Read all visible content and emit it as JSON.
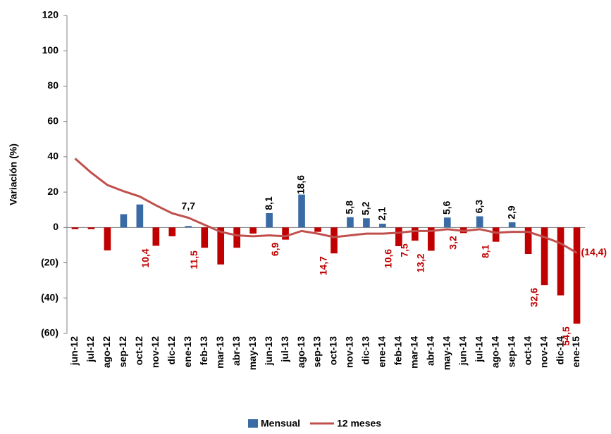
{
  "chart_data": {
    "type": "bar_line",
    "y_label": "Variación (%)",
    "categories": [
      "jun-12",
      "jul-12",
      "ago-12",
      "sep-12",
      "oct-12",
      "nov-12",
      "dic-12",
      "ene-13",
      "feb-13",
      "mar-13",
      "abr-13",
      "may-13",
      "jun-13",
      "jul-13",
      "ago-13",
      "sep-13",
      "oct-13",
      "nov-13",
      "dic-13",
      "ene-14",
      "feb-14",
      "mar-14",
      "abr-14",
      "may-14",
      "jun-14",
      "jul-14",
      "ago-14",
      "sep-14",
      "oct-14",
      "nov-14",
      "dic-14",
      "ene-15"
    ],
    "series": [
      {
        "name": "Mensual",
        "type": "bar",
        "color": "#3a6ba5",
        "negative_color": "#c00000",
        "values": [
          -1,
          -1,
          -13,
          7.5,
          13,
          -10.4,
          -5,
          0.8,
          -11.5,
          -21,
          -11.5,
          -3.5,
          8.1,
          -6.9,
          18.6,
          -2.5,
          -14.7,
          5.8,
          5.2,
          2.1,
          -10.6,
          -7.5,
          -13.2,
          5.6,
          -3.2,
          6.3,
          -8.1,
          2.9,
          -15,
          -32.6,
          -38.5,
          -54.5
        ],
        "value_labels": [
          null,
          null,
          null,
          null,
          null,
          "10,4",
          null,
          null,
          "11,5",
          null,
          null,
          null,
          "8,1",
          "6,9",
          "18,6",
          null,
          "14,7",
          "5,8",
          "5,2",
          "2,1",
          "10,6",
          "7,5",
          "13,2",
          "5,6",
          "3,2",
          "6,3",
          "8,1",
          "2,9",
          null,
          "32,6",
          null,
          "54,5"
        ]
      },
      {
        "name": "12 meses",
        "type": "line",
        "color": "#c0504d",
        "values": [
          39,
          31,
          24,
          20.5,
          17.5,
          12.5,
          8,
          5.5,
          1.5,
          -2.5,
          -4.5,
          -5,
          -4.5,
          -5,
          -2,
          -3.5,
          -5.5,
          -4.5,
          -3.5,
          -3.5,
          -3,
          -2,
          -2,
          -1,
          -2,
          -1,
          -3,
          -2.5,
          -2.5,
          -5.5,
          -9,
          -14.4
        ],
        "value_labels": [
          null,
          null,
          null,
          null,
          null,
          null,
          null,
          null,
          null,
          null,
          null,
          null,
          null,
          null,
          null,
          null,
          null,
          null,
          null,
          null,
          null,
          null,
          null,
          null,
          null,
          null,
          null,
          null,
          null,
          null,
          null,
          "(14,4)"
        ]
      }
    ],
    "annotations": [
      "7,7"
    ],
    "ylim": [
      -60,
      120
    ],
    "yticks": [
      {
        "value": -60,
        "label": "(60)"
      },
      {
        "value": -40,
        "label": "(40)"
      },
      {
        "value": -20,
        "label": "(20)"
      },
      0,
      20,
      40,
      60,
      80,
      100,
      120
    ],
    "grid": false,
    "legend": "bottom"
  }
}
